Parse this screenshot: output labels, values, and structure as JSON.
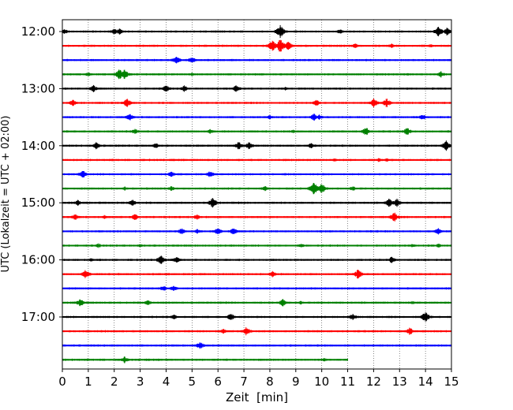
{
  "chart_data": {
    "type": "line",
    "title": "",
    "xlabel": "Zeit  [min]",
    "ylabel": "UTC (Lokalzeit = UTC + 02:00)",
    "xlim": [
      0,
      15
    ],
    "x_ticks": [
      0,
      1,
      2,
      3,
      4,
      5,
      6,
      7,
      8,
      9,
      10,
      11,
      12,
      13,
      14,
      15
    ],
    "y_tick_labels": [
      "12:00",
      "13:00",
      "14:00",
      "15:00",
      "16:00",
      "17:00"
    ],
    "grid": "vertical dotted",
    "row_interval_minutes": 15,
    "colors": [
      "#000000",
      "#ff0000",
      "#0000ff",
      "#008000"
    ],
    "rows": [
      {
        "time": "12:00",
        "color": "#000000",
        "end": 15,
        "events": [
          [
            0.1,
            0.7
          ],
          [
            2.0,
            0.9
          ],
          [
            2.2,
            0.8
          ],
          [
            8.4,
            1.8
          ],
          [
            10.7,
            0.7
          ],
          [
            14.5,
            1.4
          ],
          [
            14.85,
            1.2
          ]
        ]
      },
      {
        "time": "12:15",
        "color": "#ff0000",
        "end": 15,
        "events": [
          [
            8.1,
            1.6
          ],
          [
            8.4,
            1.9
          ],
          [
            8.7,
            1.2
          ],
          [
            11.3,
            0.7
          ],
          [
            12.7,
            0.6
          ],
          [
            14.2,
            0.5
          ]
        ]
      },
      {
        "time": "12:30",
        "color": "#0000ff",
        "end": 15,
        "events": [
          [
            4.4,
            1.1
          ],
          [
            5.0,
            0.9
          ]
        ]
      },
      {
        "time": "12:45",
        "color": "#008000",
        "end": 15,
        "events": [
          [
            1.0,
            0.6
          ],
          [
            2.2,
            1.4
          ],
          [
            2.4,
            1.3
          ],
          [
            5.0,
            0.5
          ],
          [
            14.6,
            0.8
          ]
        ]
      },
      {
        "time": "13:00",
        "color": "#000000",
        "end": 15,
        "events": [
          [
            1.2,
            0.9
          ],
          [
            4.0,
            1.0
          ],
          [
            4.7,
            0.9
          ],
          [
            6.7,
            1.0
          ],
          [
            8.6,
            0.5
          ]
        ]
      },
      {
        "time": "13:15",
        "color": "#ff0000",
        "end": 15,
        "events": [
          [
            0.4,
            0.9
          ],
          [
            2.5,
            1.3
          ],
          [
            9.8,
            0.9
          ],
          [
            12.0,
            1.3
          ],
          [
            12.5,
            1.2
          ]
        ]
      },
      {
        "time": "13:30",
        "color": "#0000ff",
        "end": 15,
        "events": [
          [
            2.6,
            1.0
          ],
          [
            8.0,
            0.6
          ],
          [
            9.7,
            1.0
          ],
          [
            9.9,
            0.8
          ],
          [
            13.9,
            0.9
          ]
        ]
      },
      {
        "time": "13:45",
        "color": "#008000",
        "end": 15,
        "events": [
          [
            2.8,
            0.8
          ],
          [
            5.7,
            0.7
          ],
          [
            8.9,
            0.5
          ],
          [
            11.7,
            1.2
          ],
          [
            13.3,
            1.1
          ]
        ]
      },
      {
        "time": "14:00",
        "color": "#000000",
        "end": 15,
        "events": [
          [
            1.3,
            1.0
          ],
          [
            3.6,
            0.8
          ],
          [
            6.8,
            1.1
          ],
          [
            7.2,
            1.0
          ],
          [
            9.6,
            0.8
          ],
          [
            14.8,
            1.3
          ]
        ]
      },
      {
        "time": "14:15",
        "color": "#ff0000",
        "end": 15,
        "events": [
          [
            10.5,
            0.5
          ],
          [
            12.2,
            0.6
          ],
          [
            12.5,
            0.5
          ]
        ]
      },
      {
        "time": "14:30",
        "color": "#0000ff",
        "end": 15,
        "events": [
          [
            0.8,
            1.2
          ],
          [
            4.2,
            0.8
          ],
          [
            5.7,
            0.9
          ]
        ]
      },
      {
        "time": "14:45",
        "color": "#008000",
        "end": 15,
        "events": [
          [
            2.4,
            0.6
          ],
          [
            4.2,
            0.7
          ],
          [
            7.8,
            0.8
          ],
          [
            9.7,
            1.8
          ],
          [
            10.0,
            1.4
          ],
          [
            11.2,
            0.7
          ]
        ]
      },
      {
        "time": "15:00",
        "color": "#000000",
        "end": 15,
        "events": [
          [
            0.6,
            0.8
          ],
          [
            2.7,
            1.0
          ],
          [
            5.8,
            1.4
          ],
          [
            12.6,
            1.2
          ],
          [
            12.9,
            1.1
          ]
        ]
      },
      {
        "time": "15:15",
        "color": "#ff0000",
        "end": 15,
        "events": [
          [
            0.5,
            0.9
          ],
          [
            1.6,
            0.6
          ],
          [
            2.8,
            0.9
          ],
          [
            5.2,
            0.8
          ],
          [
            12.8,
            1.3
          ]
        ]
      },
      {
        "time": "15:30",
        "color": "#0000ff",
        "end": 15,
        "events": [
          [
            4.6,
            0.9
          ],
          [
            5.2,
            0.7
          ],
          [
            6.0,
            1.0
          ],
          [
            6.6,
            1.0
          ],
          [
            14.5,
            0.9
          ]
        ]
      },
      {
        "time": "15:45",
        "color": "#008000",
        "end": 15,
        "events": [
          [
            1.4,
            0.6
          ],
          [
            3.0,
            0.5
          ],
          [
            9.2,
            0.6
          ],
          [
            13.5,
            0.5
          ],
          [
            14.5,
            0.6
          ]
        ]
      },
      {
        "time": "16:00",
        "color": "#000000",
        "end": 15,
        "events": [
          [
            1.1,
            0.5
          ],
          [
            3.8,
            1.2
          ],
          [
            4.4,
            0.9
          ],
          [
            12.7,
            0.9
          ]
        ]
      },
      {
        "time": "16:15",
        "color": "#ff0000",
        "end": 15,
        "events": [
          [
            0.9,
            1.2
          ],
          [
            8.1,
            0.8
          ],
          [
            11.4,
            1.4
          ]
        ]
      },
      {
        "time": "16:30",
        "color": "#0000ff",
        "end": 15,
        "events": [
          [
            3.9,
            0.8
          ],
          [
            4.3,
            0.8
          ]
        ]
      },
      {
        "time": "16:45",
        "color": "#008000",
        "end": 15,
        "events": [
          [
            0.7,
            1.1
          ],
          [
            3.3,
            0.7
          ],
          [
            8.5,
            1.0
          ],
          [
            9.2,
            0.5
          ],
          [
            13.5,
            0.5
          ]
        ]
      },
      {
        "time": "17:00",
        "color": "#000000",
        "end": 15,
        "events": [
          [
            4.3,
            0.8
          ],
          [
            6.5,
            1.0
          ],
          [
            11.2,
            0.9
          ],
          [
            14.0,
            1.5
          ]
        ]
      },
      {
        "time": "17:15",
        "color": "#ff0000",
        "end": 15,
        "events": [
          [
            6.2,
            0.7
          ],
          [
            7.1,
            1.2
          ],
          [
            13.4,
            1.1
          ]
        ]
      },
      {
        "time": "17:30",
        "color": "#0000ff",
        "end": 15,
        "events": [
          [
            5.3,
            1.1
          ]
        ]
      },
      {
        "time": "17:45",
        "color": "#008000",
        "end": 11.0,
        "events": [
          [
            2.4,
            0.9
          ],
          [
            10.1,
            0.5
          ]
        ]
      }
    ]
  }
}
